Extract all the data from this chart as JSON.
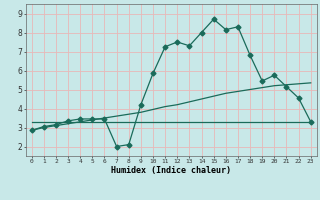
{
  "xlabel": "Humidex (Indice chaleur)",
  "background_color": "#c8e8e8",
  "grid_color": "#e8b8b8",
  "line_color": "#1a6b5a",
  "x_values": [
    0,
    1,
    2,
    3,
    4,
    5,
    6,
    7,
    8,
    9,
    10,
    11,
    12,
    13,
    14,
    15,
    16,
    17,
    18,
    19,
    20,
    21,
    22,
    23
  ],
  "y_curve": [
    2.85,
    3.05,
    3.15,
    3.35,
    3.45,
    3.45,
    3.45,
    2.0,
    2.1,
    4.2,
    5.85,
    7.25,
    7.5,
    7.3,
    8.0,
    8.7,
    8.15,
    8.3,
    6.8,
    5.45,
    5.75,
    5.15,
    4.55,
    3.3
  ],
  "y_flat": [
    3.3,
    3.3,
    3.3,
    3.3,
    3.3,
    3.3,
    3.3,
    3.3,
    3.3,
    3.3,
    3.3,
    3.3,
    3.3,
    3.3,
    3.3,
    3.3,
    3.3,
    3.3,
    3.3,
    3.3,
    3.3,
    3.3,
    3.3,
    3.3
  ],
  "y_slope": [
    2.85,
    3.0,
    3.1,
    3.2,
    3.3,
    3.4,
    3.5,
    3.6,
    3.7,
    3.8,
    3.95,
    4.1,
    4.2,
    4.35,
    4.5,
    4.65,
    4.8,
    4.9,
    5.0,
    5.1,
    5.2,
    5.25,
    5.3,
    5.35
  ],
  "ylim": [
    1.5,
    9.5
  ],
  "xlim": [
    -0.5,
    23.5
  ],
  "yticks": [
    2,
    3,
    4,
    5,
    6,
    7,
    8,
    9
  ],
  "xticks": [
    0,
    1,
    2,
    3,
    4,
    5,
    6,
    7,
    8,
    9,
    10,
    11,
    12,
    13,
    14,
    15,
    16,
    17,
    18,
    19,
    20,
    21,
    22,
    23
  ],
  "marker_size": 2.5,
  "line_width": 0.9
}
